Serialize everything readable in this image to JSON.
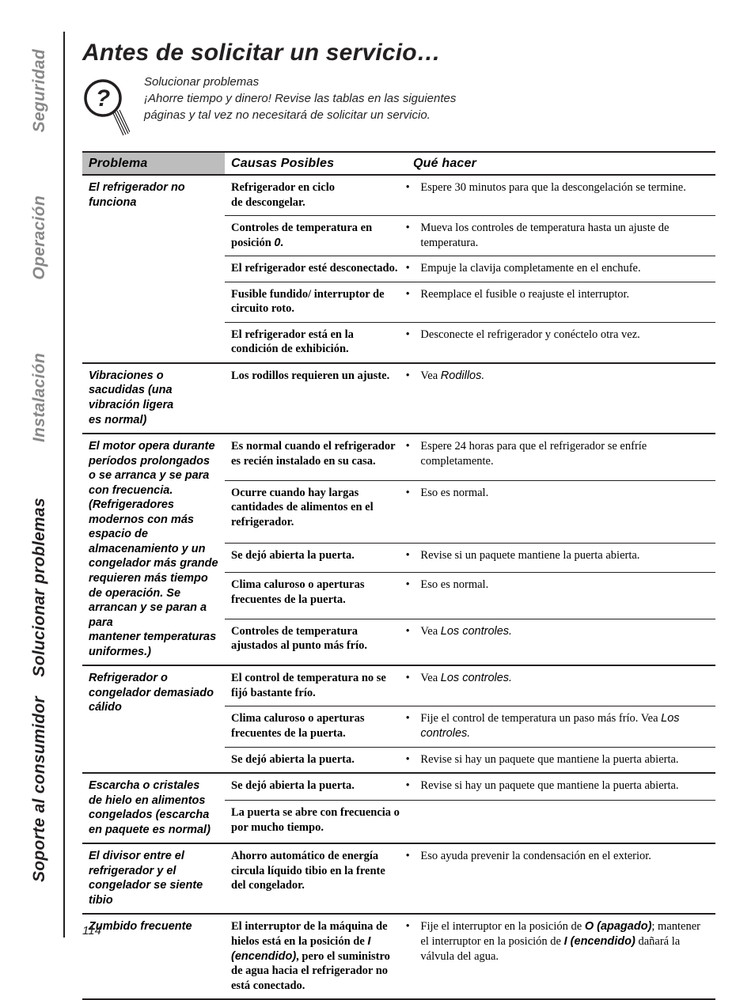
{
  "page_number": "114",
  "colors": {
    "text": "#231f20",
    "inactive_tab": "#888888",
    "header_fill": "#bdbdbd",
    "rule": "#231f20",
    "background": "#ffffff"
  },
  "tabs": [
    {
      "key": "seguridad",
      "label": "Seguridad",
      "active": false
    },
    {
      "key": "operacion",
      "label": "Operación",
      "active": false
    },
    {
      "key": "instalacion",
      "label": "Instalación",
      "active": false
    },
    {
      "key": "solucionar",
      "label": "Solucionar problemas",
      "active": true
    },
    {
      "key": "soporte",
      "label": "Soporte al consumidor",
      "active": false
    }
  ],
  "title": "Antes de solicitar un servicio…",
  "intro": {
    "heading": "Solucionar problemas",
    "body": "¡Ahorre tiempo y dinero! Revise las tablas en las siguientes páginas y tal vez no necesitará de solicitar un servicio."
  },
  "table": {
    "headers": {
      "problem": "Problema",
      "cause": "Causas Posibles",
      "action": "Qué hacer"
    },
    "groups": [
      {
        "problem": "El refrigerador no funciona",
        "rows": [
          {
            "cause_html": "Refrigerador en ciclo de descongelar.",
            "action_html": "<span class='indent'><span class='bullet'>•</span>Espere 30 minutos para que la descongelación se termine.</span>"
          },
          {
            "cause_html": "Controles de temperatura en posición <span class='italic-inline'>0.</span>",
            "action_html": "<span class='indent'><span class='bullet'>•</span>Mueva los controles de temperatura hasta un ajuste de temperatura.</span>"
          },
          {
            "cause_html": "El refrigerador esté desconectado.",
            "action_html": "<span class='indent'><span class='bullet'>•</span>Empuje la clavija completamente en el enchufe.</span>"
          },
          {
            "cause_html": "Fusible fundido/ interruptor de circuito roto.",
            "action_html": "<span class='indent'><span class='bullet'>•</span>Reemplace el fusible o reajuste el interruptor.</span>"
          },
          {
            "cause_html": "El refrigerador está en la condición de exhibición.",
            "action_html": "<span class='indent'><span class='bullet'>•</span>Desconecte el refrigerador y conéctelo otra vez.</span>"
          }
        ]
      },
      {
        "problem": "Vibraciones o sacudidas (una vibración ligera es normal)",
        "rows": [
          {
            "cause_html": "Los rodillos requieren un ajuste.",
            "action_html": "<span class='indent'><span class='bullet'>•</span>Vea <span class='ital'>Rodillos.</span></span>"
          }
        ]
      },
      {
        "problem": "El motor opera durante períodos prolongados o se arranca y se para con frecuencia. (Refrigeradores modernos con más espacio de almacenamiento y un congelador más grande requieren más tiempo de operación. Se arrancan y se paran a para mantener temperaturas uniformes.)",
        "rows": [
          {
            "cause_html": "Es normal cuando el refrigerador es recién instalado en su casa.",
            "action_html": "<span class='indent'><span class='bullet'>•</span>Espere 24 horas para que el refrigerador se enfríe completamente.</span>"
          },
          {
            "cause_html": "Ocurre cuando hay largas cantidades de alimentos en el refrigerador.",
            "action_html": "<span class='indent'><span class='bullet'>•</span>Eso es normal.</span>"
          },
          {
            "cause_html": "Se dejó abierta la puerta.",
            "action_html": "<span class='indent'><span class='bullet'>•</span>Revise si un paquete mantiene la puerta abierta.</span>"
          },
          {
            "cause_html": "Clima caluroso o aperturas frecuentes de la puerta.",
            "action_html": "<span class='indent'><span class='bullet'>•</span>Eso es normal.</span>"
          },
          {
            "cause_html": "Controles de temperatura ajustados al punto más frío.",
            "action_html": "<span class='indent'><span class='bullet'>•</span>Vea <span class='ital'>Los controles.</span></span>"
          }
        ]
      },
      {
        "problem": "Refrigerador o congelador demasiado cálido",
        "rows": [
          {
            "cause_html": "El control de temperatura no se fijó bastante frío.",
            "action_html": "<span class='indent'><span class='bullet'>•</span>Vea <span class='ital'>Los controles.</span></span>"
          },
          {
            "cause_html": "Clima caluroso o aperturas frecuentes de la puerta.",
            "action_html": "<span class='indent'><span class='bullet'>•</span>Fije el control de temperatura un paso más frío. Vea <span class='ital'>Los controles.</span></span>"
          },
          {
            "cause_html": "Se dejó abierta la puerta.",
            "action_html": "<span class='indent'><span class='bullet'>•</span>Revise si hay un paquete que mantiene la puerta abierta.</span>"
          }
        ]
      },
      {
        "problem": "Escarcha o cristales de hielo en alimentos congelados (escarcha en paquete es normal)",
        "rows": [
          {
            "cause_html": "Se dejó abierta la puerta.",
            "action_html": "<span class='indent'><span class='bullet'>•</span>Revise si hay un paquete que mantiene la puerta abierta.</span>"
          },
          {
            "cause_html": "La puerta se abre con frecuencia o por mucho tiempo.",
            "action_html": ""
          }
        ]
      },
      {
        "problem": "El divisor entre el refrigerador y el congelador se siente tibio",
        "rows": [
          {
            "cause_html": "Ahorro automático de energía circula líquido tibio en la frente del congelador.",
            "action_html": "<span class='indent'><span class='bullet'>•</span>Eso ayuda prevenir la condensación en el exterior.</span>"
          }
        ]
      },
      {
        "problem": "Zumbido frecuente",
        "rows": [
          {
            "cause_html": "El interruptor de la máquina de hielos está en la posición de <span class='italic-inline'>I (encendido)</span>, pero el suministro de agua hacia el refrigerador no está conectado.",
            "action_html": "<span class='indent'><span class='bullet'>•</span>Fije el interruptor en la posición de <span class='ital-b'>O (apagado)</span>; mantener el interruptor en la posición de <span class='ital-b'>I (encendido)</span> dañará la válvula del agua.</span>"
          }
        ]
      }
    ]
  }
}
